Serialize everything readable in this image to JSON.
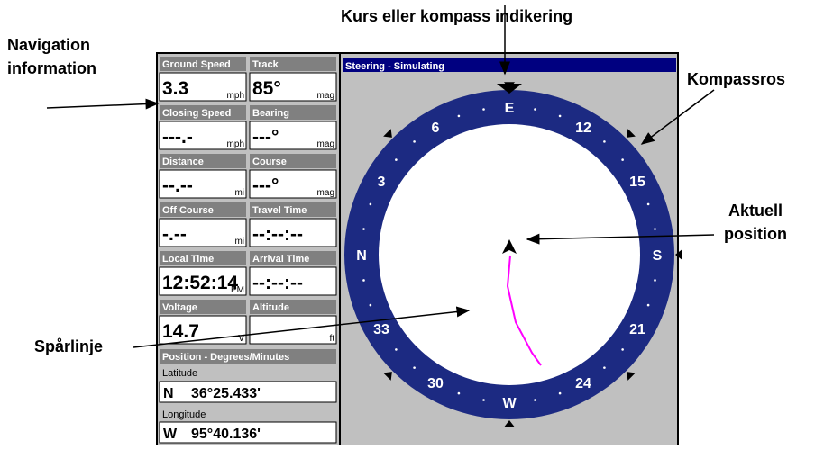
{
  "annotations": {
    "course": "Kurs eller kompass indikering",
    "nav_info": [
      "Navigation",
      "information"
    ],
    "compass_rose": "Kompassros",
    "current_position": [
      "Aktuell",
      "position"
    ],
    "track_line": "Spårlinje"
  },
  "fields": [
    {
      "label": "Ground Speed",
      "value": "3.3",
      "unit": "mph"
    },
    {
      "label": "Track",
      "value": "85°",
      "unit": "mag"
    },
    {
      "label": "Closing Speed",
      "value": "---.-",
      "unit": "mph"
    },
    {
      "label": "Bearing",
      "value": "---°",
      "unit": "mag"
    },
    {
      "label": "Distance",
      "value": "--.--",
      "unit": "mi"
    },
    {
      "label": "Course",
      "value": "---°",
      "unit": "mag"
    },
    {
      "label": "Off Course",
      "value": "-.--",
      "unit": "mi"
    },
    {
      "label": "Travel Time",
      "value": "--:--:--"
    },
    {
      "label": "Local Time",
      "value": "12:52:14",
      "unit": "PM"
    },
    {
      "label": "Arrival Time",
      "value": "--:--:--"
    },
    {
      "label": "Voltage",
      "value": "14.7",
      "unit": "V"
    },
    {
      "label": "Altitude",
      "unit": "ft"
    }
  ],
  "position": {
    "title": "Position - Degrees/Minutes",
    "latitude": {
      "label": "Latitude",
      "hemisphere": "N",
      "value": "36°25.433'"
    },
    "longitude": {
      "label": "Longitude",
      "hemisphere": "W",
      "value": "95°40.136'"
    }
  },
  "steering": {
    "title": "Steering - Simulating",
    "compass_labels": [
      "N",
      "3",
      "6",
      "E",
      "12",
      "15",
      "S",
      "21",
      "24",
      "W",
      "30",
      "33"
    ]
  }
}
